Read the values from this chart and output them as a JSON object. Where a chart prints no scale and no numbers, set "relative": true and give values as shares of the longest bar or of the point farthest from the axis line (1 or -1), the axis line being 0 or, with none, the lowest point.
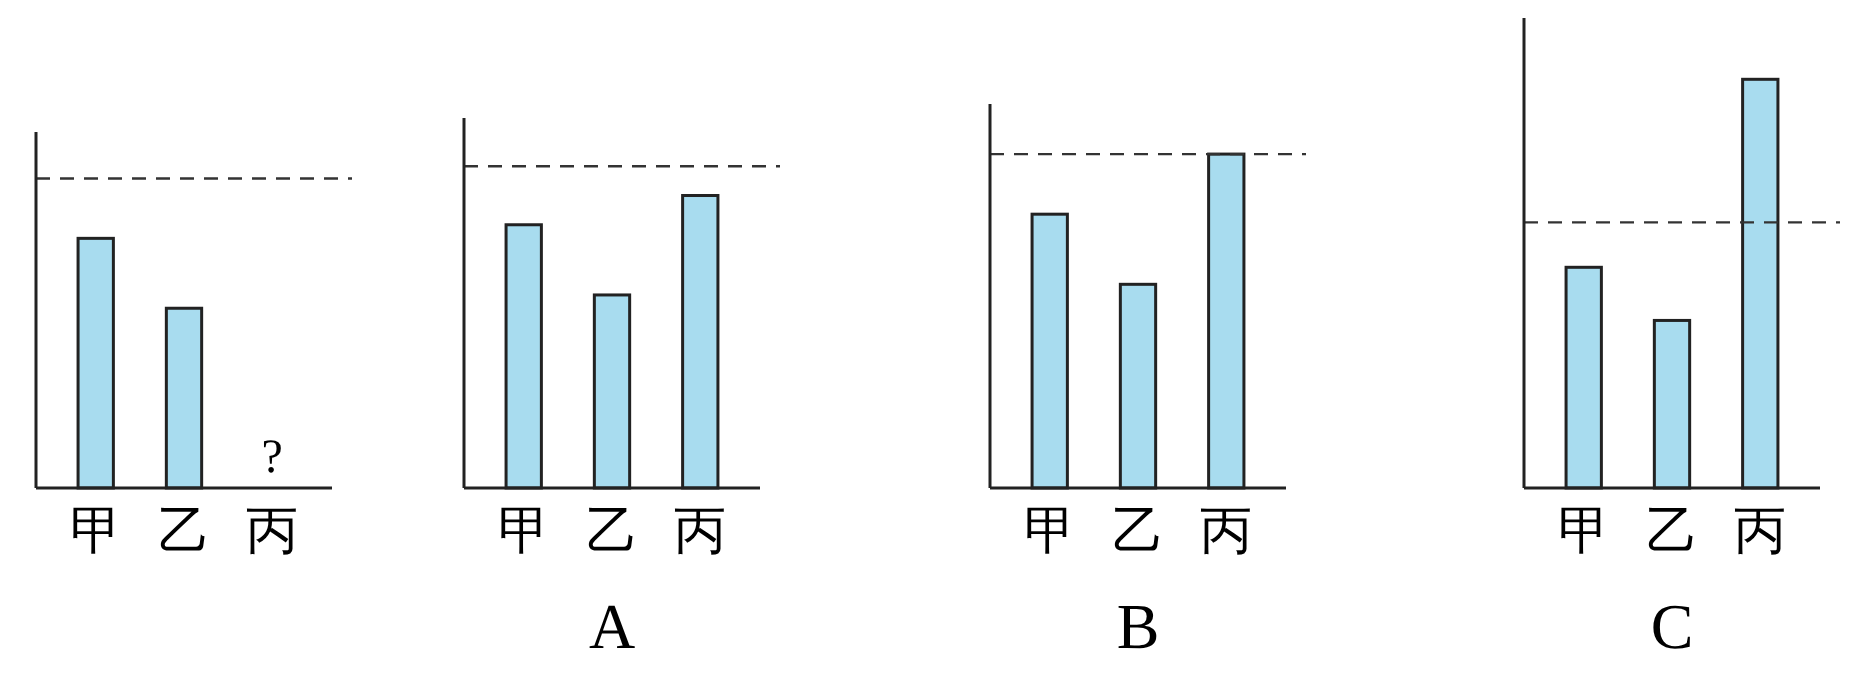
{
  "chart_data": [
    {
      "type": "bar",
      "relative": true,
      "categories": [
        "甲",
        "乙",
        "丙"
      ],
      "values": [
        1,
        0.72,
        null
      ],
      "color": "#a8dcef",
      "ref_lines": [
        {
          "axis": "y",
          "value": 1.24,
          "line_style": "dashed",
          "color": "#333333"
        }
      ],
      "annotations": [
        "?"
      ]
    },
    {
      "type": "bar",
      "relative": true,
      "xlabel": "A",
      "categories": [
        "甲",
        "乙",
        "丙"
      ],
      "values": [
        0.9,
        0.66,
        1
      ],
      "color": "#a8dcef",
      "ref_lines": [
        {
          "axis": "y",
          "value": 1.1,
          "line_style": "dashed",
          "color": "#333333"
        }
      ]
    },
    {
      "type": "bar",
      "relative": true,
      "xlabel": "B",
      "categories": [
        "甲",
        "乙",
        "丙"
      ],
      "values": [
        0.82,
        0.61,
        1
      ],
      "color": "#a8dcef",
      "ref_lines": [
        {
          "axis": "y",
          "value": 1.0,
          "line_style": "dashed",
          "color": "#333333"
        }
      ]
    },
    {
      "type": "bar",
      "relative": true,
      "xlabel": "C",
      "categories": [
        "甲",
        "乙",
        "丙"
      ],
      "values": [
        0.54,
        0.41,
        1
      ],
      "color": "#a8dcef",
      "ref_lines": [
        {
          "axis": "y",
          "value": 0.65,
          "line_style": "dashed",
          "color": "#333333"
        }
      ]
    }
  ]
}
